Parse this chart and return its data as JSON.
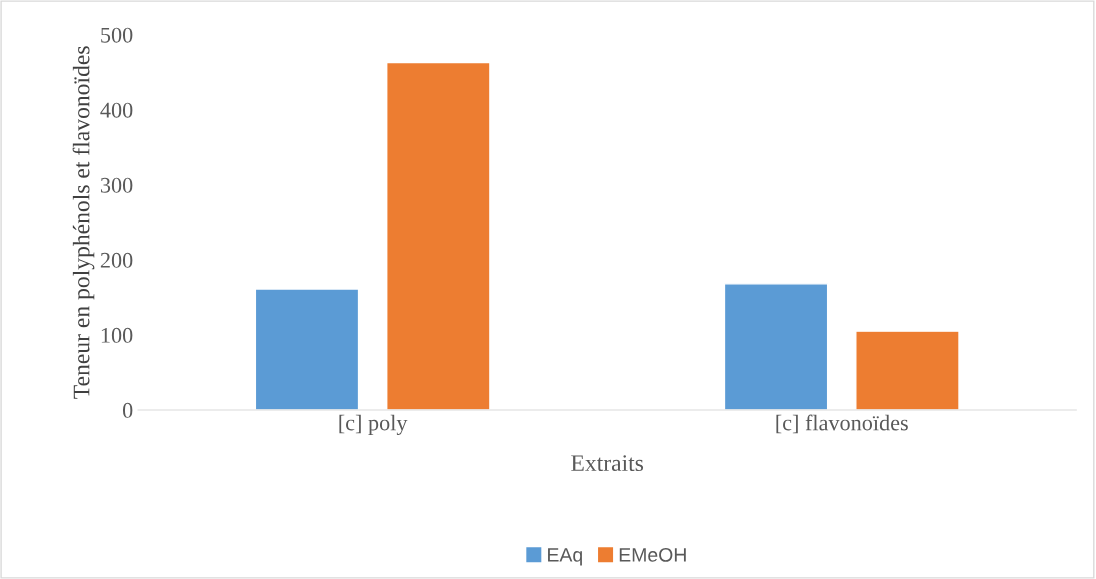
{
  "chart_data": {
    "type": "bar",
    "xlabel": "Extraits",
    "ylabel": "Teneur en polyphénols et flavonoïdes",
    "categories": [
      "[c] poly",
      "[c] flavonoïdes"
    ],
    "series": [
      {
        "name": "EAq",
        "color": "#5b9bd5",
        "values": [
          161,
          168
        ]
      },
      {
        "name": "EMeOH",
        "color": "#ed7d31",
        "values": [
          463,
          105
        ]
      }
    ],
    "ylim": [
      0,
      500
    ],
    "yticks": [
      0,
      100,
      200,
      300,
      400,
      500
    ],
    "grid": false,
    "legend": "bottom"
  }
}
